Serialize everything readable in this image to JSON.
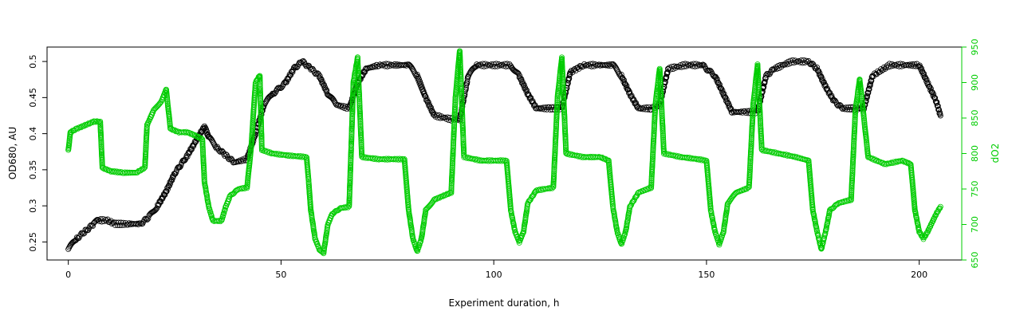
{
  "chart_data": {
    "type": "scatter",
    "title": "",
    "xlabel": "Experiment duration, h",
    "ylabel_left": "OD680, AU",
    "ylabel_right": "dO2",
    "xlim": [
      -5,
      210
    ],
    "ylim_left": [
      0.225,
      0.52
    ],
    "ylim_right": [
      650,
      950
    ],
    "x_ticks": [
      0,
      50,
      100,
      150,
      200
    ],
    "y_ticks_left": [
      0.25,
      0.3,
      0.35,
      0.4,
      0.45,
      0.5
    ],
    "y_ticks_right": [
      650,
      700,
      750,
      800,
      850,
      900,
      950
    ],
    "grid": false,
    "legend": "none",
    "colors": {
      "od": "#000000",
      "do2": "#00cc00",
      "frame": "#000000"
    },
    "series": [
      {
        "axis": "left",
        "marker": "open-circle",
        "color": "#000000",
        "points": [
          [
            0,
            0.24
          ],
          [
            2,
            0.255
          ],
          [
            4,
            0.265
          ],
          [
            6,
            0.275
          ],
          [
            7,
            0.28
          ],
          [
            9,
            0.28
          ],
          [
            11,
            0.275
          ],
          [
            14,
            0.275
          ],
          [
            17,
            0.275
          ],
          [
            19,
            0.285
          ],
          [
            21,
            0.3
          ],
          [
            23,
            0.32
          ],
          [
            25,
            0.345
          ],
          [
            28,
            0.37
          ],
          [
            30,
            0.39
          ],
          [
            32,
            0.41
          ],
          [
            33,
            0.395
          ],
          [
            35,
            0.38
          ],
          [
            37,
            0.37
          ],
          [
            39,
            0.36
          ],
          [
            42,
            0.365
          ],
          [
            44,
            0.4
          ],
          [
            46,
            0.44
          ],
          [
            48,
            0.455
          ],
          [
            51,
            0.47
          ],
          [
            53,
            0.49
          ],
          [
            55,
            0.5
          ],
          [
            57,
            0.49
          ],
          [
            59,
            0.48
          ],
          [
            61,
            0.455
          ],
          [
            63,
            0.44
          ],
          [
            66,
            0.435
          ],
          [
            68,
            0.47
          ],
          [
            70,
            0.49
          ],
          [
            73,
            0.495
          ],
          [
            77,
            0.495
          ],
          [
            80,
            0.495
          ],
          [
            82,
            0.48
          ],
          [
            84,
            0.45
          ],
          [
            86,
            0.425
          ],
          [
            90,
            0.42
          ],
          [
            92,
            0.42
          ],
          [
            94,
            0.48
          ],
          [
            96,
            0.495
          ],
          [
            100,
            0.495
          ],
          [
            104,
            0.495
          ],
          [
            106,
            0.48
          ],
          [
            108,
            0.455
          ],
          [
            110,
            0.435
          ],
          [
            113,
            0.435
          ],
          [
            116,
            0.435
          ],
          [
            118,
            0.485
          ],
          [
            121,
            0.495
          ],
          [
            125,
            0.495
          ],
          [
            128,
            0.495
          ],
          [
            130,
            0.48
          ],
          [
            132,
            0.455
          ],
          [
            134,
            0.435
          ],
          [
            137,
            0.435
          ],
          [
            139,
            0.44
          ],
          [
            141,
            0.49
          ],
          [
            145,
            0.495
          ],
          [
            149,
            0.495
          ],
          [
            152,
            0.48
          ],
          [
            154,
            0.455
          ],
          [
            156,
            0.43
          ],
          [
            159,
            0.43
          ],
          [
            162,
            0.43
          ],
          [
            164,
            0.48
          ],
          [
            166,
            0.49
          ],
          [
            170,
            0.5
          ],
          [
            174,
            0.5
          ],
          [
            176,
            0.49
          ],
          [
            178,
            0.465
          ],
          [
            180,
            0.445
          ],
          [
            182,
            0.435
          ],
          [
            185,
            0.435
          ],
          [
            187,
            0.435
          ],
          [
            189,
            0.48
          ],
          [
            193,
            0.495
          ],
          [
            197,
            0.495
          ],
          [
            200,
            0.495
          ],
          [
            202,
            0.47
          ],
          [
            204,
            0.445
          ],
          [
            205,
            0.425
          ]
        ]
      },
      {
        "axis": "right",
        "marker": "open-circle",
        "color": "#00cc00",
        "points": [
          [
            0,
            805
          ],
          [
            0.5,
            830
          ],
          [
            2,
            835
          ],
          [
            4,
            840
          ],
          [
            6,
            845
          ],
          [
            7.5,
            845
          ],
          [
            8,
            780
          ],
          [
            10,
            775
          ],
          [
            13,
            773
          ],
          [
            16,
            773
          ],
          [
            18,
            780
          ],
          [
            18.5,
            840
          ],
          [
            20,
            860
          ],
          [
            22,
            875
          ],
          [
            23,
            890
          ],
          [
            24,
            835
          ],
          [
            26,
            830
          ],
          [
            28,
            830
          ],
          [
            30,
            825
          ],
          [
            31.5,
            820
          ],
          [
            32,
            760
          ],
          [
            33,
            725
          ],
          [
            34,
            705
          ],
          [
            36,
            705
          ],
          [
            37,
            725
          ],
          [
            38,
            740
          ],
          [
            40,
            750
          ],
          [
            42,
            752
          ],
          [
            43,
            810
          ],
          [
            44,
            900
          ],
          [
            45,
            910
          ],
          [
            45.5,
            805
          ],
          [
            48,
            800
          ],
          [
            52,
            797
          ],
          [
            56,
            795
          ],
          [
            56.5,
            760
          ],
          [
            57,
            720
          ],
          [
            58,
            680
          ],
          [
            59,
            665
          ],
          [
            60,
            660
          ],
          [
            61,
            700
          ],
          [
            62,
            715
          ],
          [
            64,
            723
          ],
          [
            66,
            725
          ],
          [
            66.5,
            810
          ],
          [
            67,
            900
          ],
          [
            68,
            935
          ],
          [
            69,
            795
          ],
          [
            73,
            792
          ],
          [
            77,
            792
          ],
          [
            79,
            792
          ],
          [
            80,
            720
          ],
          [
            81,
            680
          ],
          [
            82,
            662
          ],
          [
            83,
            680
          ],
          [
            84,
            720
          ],
          [
            86,
            735
          ],
          [
            88,
            740
          ],
          [
            90,
            745
          ],
          [
            91,
            880
          ],
          [
            92,
            945
          ],
          [
            93,
            795
          ],
          [
            97,
            790
          ],
          [
            101,
            790
          ],
          [
            103,
            790
          ],
          [
            104,
            720
          ],
          [
            105,
            690
          ],
          [
            106,
            675
          ],
          [
            107,
            690
          ],
          [
            108,
            730
          ],
          [
            110,
            748
          ],
          [
            114,
            752
          ],
          [
            115,
            880
          ],
          [
            116,
            935
          ],
          [
            117,
            800
          ],
          [
            121,
            795
          ],
          [
            125,
            795
          ],
          [
            127,
            790
          ],
          [
            128,
            725
          ],
          [
            129,
            690
          ],
          [
            130,
            672
          ],
          [
            131,
            690
          ],
          [
            132,
            725
          ],
          [
            134,
            745
          ],
          [
            137,
            752
          ],
          [
            138,
            870
          ],
          [
            139,
            920
          ],
          [
            140,
            800
          ],
          [
            144,
            795
          ],
          [
            148,
            792
          ],
          [
            150,
            790
          ],
          [
            151,
            720
          ],
          [
            152,
            690
          ],
          [
            153,
            672
          ],
          [
            154,
            690
          ],
          [
            155,
            730
          ],
          [
            157,
            745
          ],
          [
            160,
            752
          ],
          [
            161,
            870
          ],
          [
            162,
            925
          ],
          [
            163,
            805
          ],
          [
            167,
            800
          ],
          [
            171,
            795
          ],
          [
            174,
            790
          ],
          [
            175,
            720
          ],
          [
            176,
            690
          ],
          [
            177,
            665
          ],
          [
            178,
            690
          ],
          [
            179,
            720
          ],
          [
            181,
            730
          ],
          [
            184,
            735
          ],
          [
            185,
            860
          ],
          [
            186,
            905
          ],
          [
            188,
            795
          ],
          [
            192,
            785
          ],
          [
            196,
            790
          ],
          [
            198,
            785
          ],
          [
            199,
            720
          ],
          [
            200,
            690
          ],
          [
            201,
            680
          ],
          [
            202,
            690
          ],
          [
            204,
            715
          ],
          [
            205,
            725
          ]
        ]
      }
    ]
  }
}
